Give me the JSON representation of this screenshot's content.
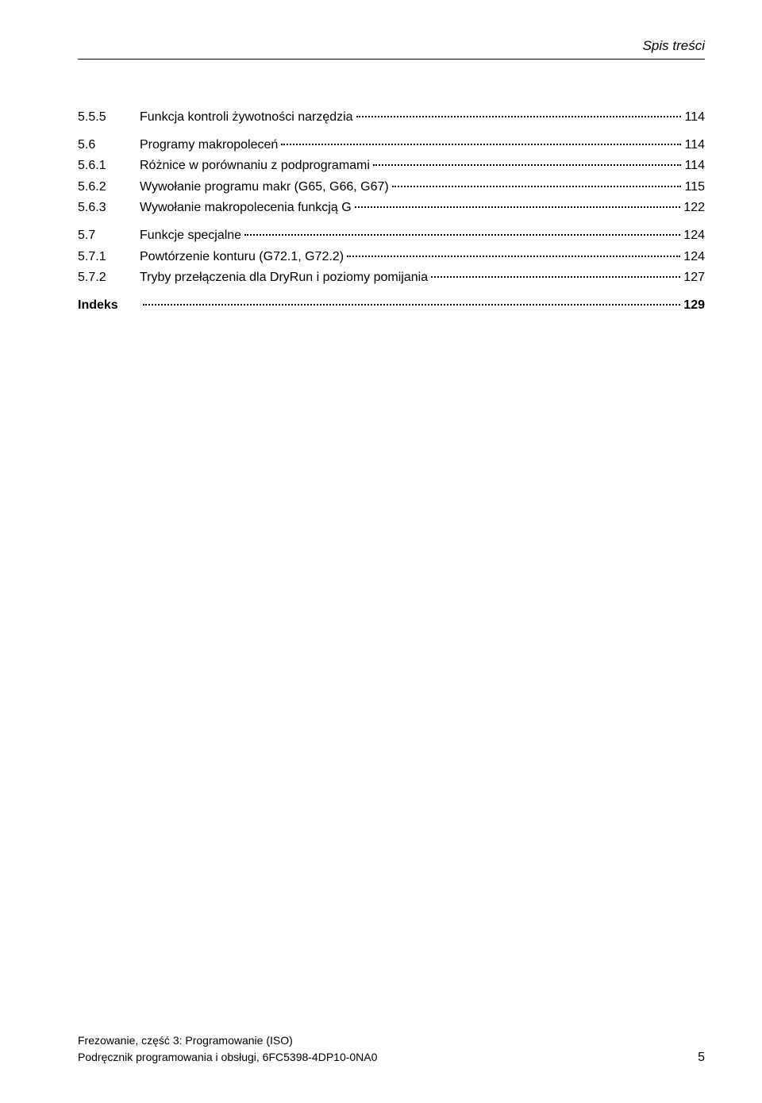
{
  "header": {
    "title": "Spis treści"
  },
  "toc": [
    {
      "num": "5.5.5",
      "title": "Funkcja kontroli żywotności narzędzia",
      "page": "114",
      "spaceBefore": false,
      "bold": false
    },
    {
      "num": "5.6",
      "title": "Programy makropoleceń",
      "page": "114",
      "spaceBefore": true,
      "bold": false
    },
    {
      "num": "5.6.1",
      "title": "Różnice w porównaniu z podprogramami",
      "page": "114",
      "spaceBefore": false,
      "bold": false
    },
    {
      "num": "5.6.2",
      "title": "Wywołanie programu makr (G65, G66, G67)",
      "page": "115",
      "spaceBefore": false,
      "bold": false
    },
    {
      "num": "5.6.3",
      "title": "Wywołanie makropolecenia funkcją G",
      "page": "122",
      "spaceBefore": false,
      "bold": false
    },
    {
      "num": "5.7",
      "title": "Funkcje specjalne",
      "page": "124",
      "spaceBefore": true,
      "bold": false
    },
    {
      "num": "5.7.1",
      "title": "Powtórzenie konturu (G72.1, G72.2)",
      "page": "124",
      "spaceBefore": false,
      "bold": false
    },
    {
      "num": "5.7.2",
      "title": "Tryby przełączenia dla DryRun i poziomy pomijania",
      "page": "127",
      "spaceBefore": false,
      "bold": false
    },
    {
      "num": "Indeks",
      "title": "",
      "page": " 129",
      "spaceBefore": true,
      "bold": true
    }
  ],
  "footer": {
    "line1": "Frezowanie, część 3: Programowanie (ISO)",
    "line2": "Podręcznik programowania i obsługi, 6FC5398-4DP10-0NA0",
    "pageNum": "5"
  }
}
